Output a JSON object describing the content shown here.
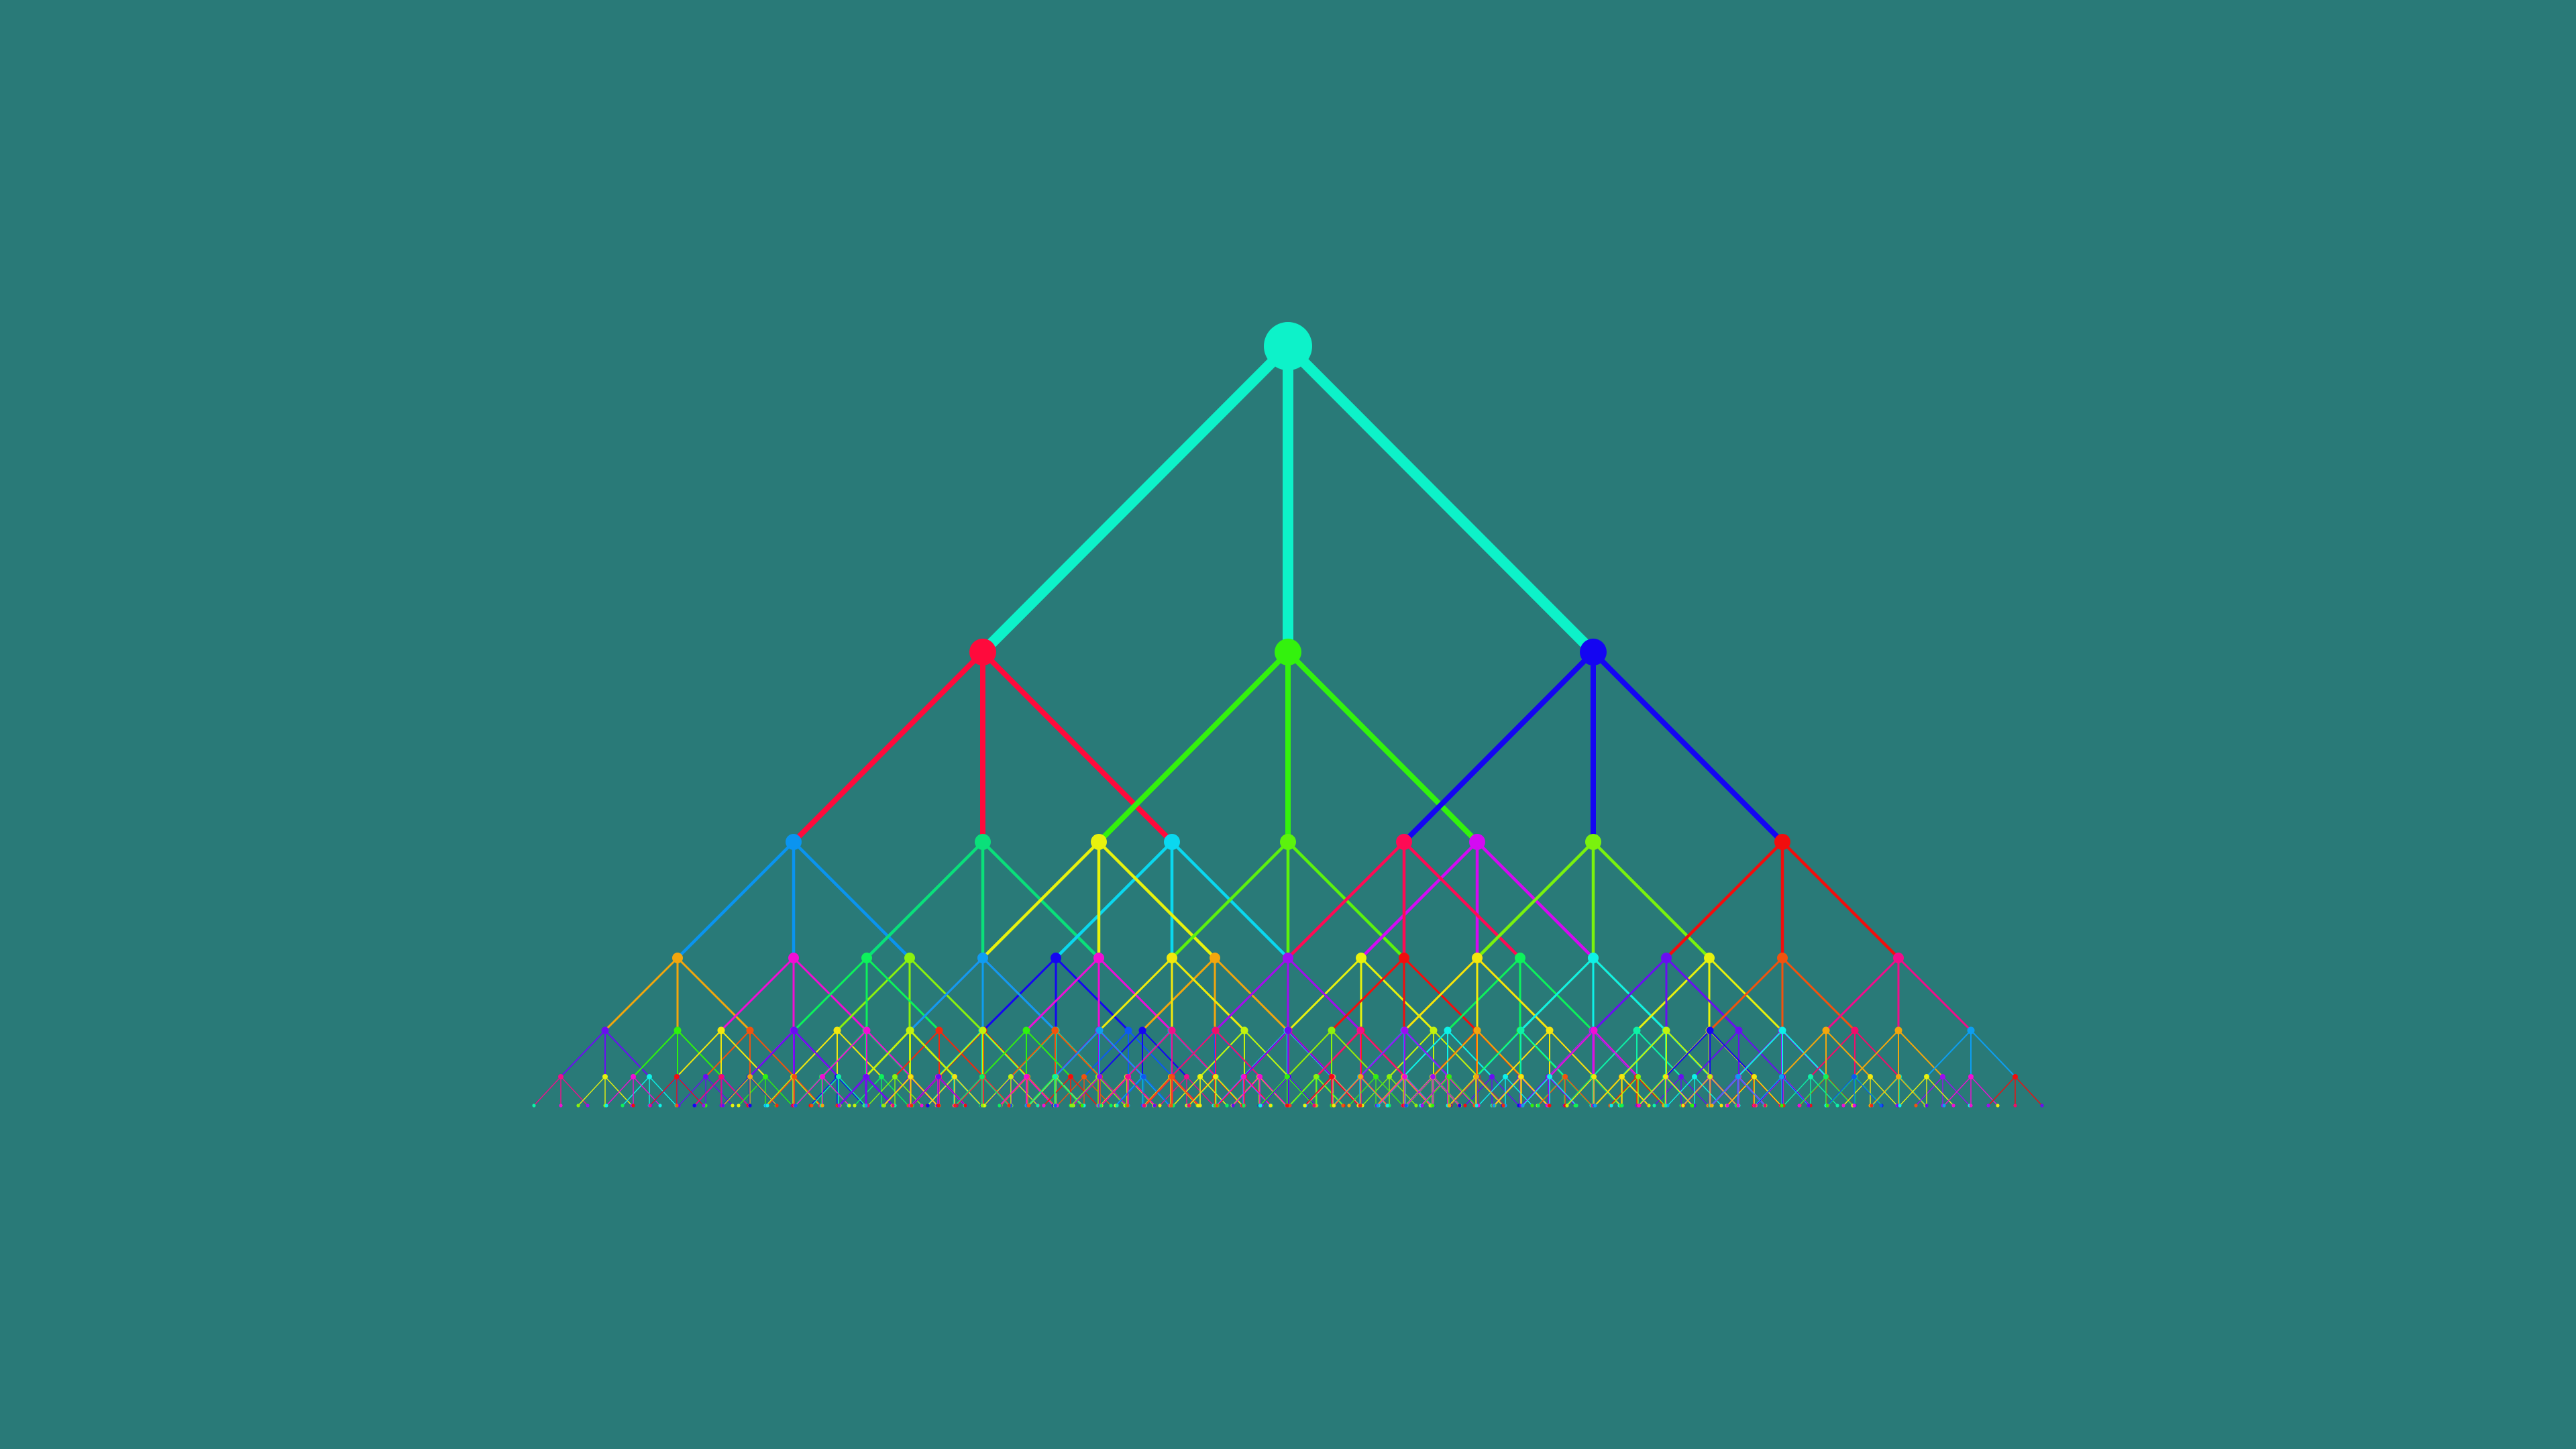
{
  "canvas": {
    "background_color": "#297a78"
  },
  "tree": {
    "description_type": "ternary-tree",
    "branching_factor": 3,
    "visible_depth_levels": 7,
    "root": {
      "color": "#0df2c9"
    },
    "level_1_colors": [
      "#ff0a3c",
      "#33f20d",
      "#1405f2"
    ],
    "level_2_colors": [
      "#0a94f0",
      "#0ae07a",
      "#0ad8f0",
      "#e8f20d",
      "#5cf20d",
      "#d40af2",
      "#ff0a54",
      "#7af20d",
      "#f20d0d"
    ],
    "palette": [
      "#f2a60d",
      "#f20d0d",
      "#c3f20d",
      "#1405f2",
      "#0df2a6",
      "#f20d8b",
      "#e8f20d",
      "#2ef20d",
      "#f20d6a",
      "#0d5bf2",
      "#9e0df2",
      "#f2530d",
      "#0df25b",
      "#0df2e8",
      "#f20dd4",
      "#8bf20d",
      "#0d9ef2",
      "#f2e80d",
      "#6a0df2",
      "#f2290d"
    ]
  }
}
